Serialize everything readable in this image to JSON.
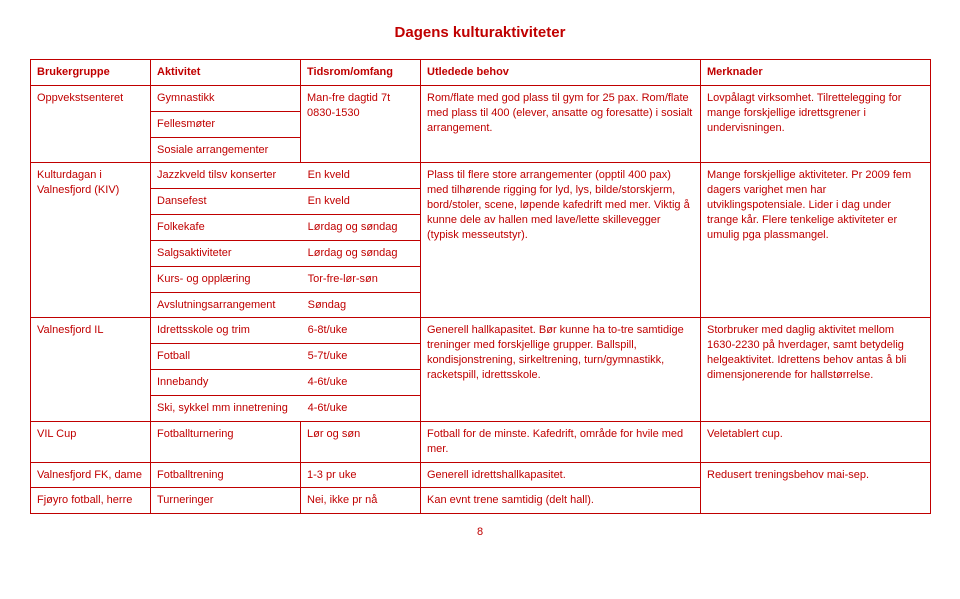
{
  "title": "Dagens kulturaktiviteter",
  "headers": {
    "c1": "Brukergruppe",
    "c2": "Aktivitet",
    "c3": "Tidsrom/omfang",
    "c4": "Utledede behov",
    "c5": "Merknader"
  },
  "row1": {
    "group": "Oppvekstsenteret",
    "act1": "Gymnastikk",
    "act2": "Fellesmøter",
    "act3": "Sosiale arrangementer",
    "time1": "Man-fre dagtid 7t",
    "time2": "0830-1530",
    "behov": "Rom/flate med god plass til gym for 25 pax. Rom/flate med plass til 400 (elever, ansatte og foresatte) i sosialt arrangement.",
    "merk": "Lovpålagt virksomhet. Tilrettelegging for mange forskjellige idrettsgrener i undervisningen."
  },
  "row2": {
    "group": "Kulturdagan i Valnesfjord (KIV)",
    "a1": "Jazzkveld tilsv konserter",
    "t1": "En kveld",
    "a2": "Dansefest",
    "t2": "En kveld",
    "a3": "Folkekafe",
    "t3": "Lørdag og søndag",
    "a4": "Salgsaktiviteter",
    "t4": "Lørdag og søndag",
    "a5": "Kurs- og opplæring",
    "t5": "Tor-fre-lør-søn",
    "a6": "Avslutningsarrangement",
    "t6": "Søndag",
    "behov": "Plass til flere store arrangementer (opptil 400 pax) med tilhørende rigging for lyd, lys, bilde/storskjerm, bord/stoler, scene, løpende kafedrift med mer. Viktig å kunne dele av hallen med lave/lette skillevegger (typisk messeutstyr).",
    "merk": "Mange forskjellige aktiviteter. Pr 2009 fem dagers varighet men har utviklingspotensiale. Lider i dag under trange kår. Flere tenkelige aktiviteter er umulig pga plassmangel."
  },
  "row3": {
    "group": "Valnesfjord IL",
    "a1": "Idrettsskole og trim",
    "t1": "6-8t/uke",
    "a2": "Fotball",
    "t2": "5-7t/uke",
    "a3": "Innebandy",
    "t3": "4-6t/uke",
    "a4": "Ski, sykkel mm innetrening",
    "t4": "4-6t/uke",
    "behov": "Generell hallkapasitet. Bør kunne ha to-tre samtidige treninger med forskjellige grupper. Ballspill, kondisjonstrening, sirkeltrening, turn/gymnastikk, racketspill, idrettsskole.",
    "merk": "Storbruker med daglig aktivitet mellom 1630-2230 på hverdager, samt betydelig helgeaktivitet. Idrettens behov antas å bli dimensjonerende for hallstørrelse."
  },
  "row4": {
    "group": "VIL Cup",
    "act": "Fotballturnering",
    "time": "Lør og søn",
    "behov": "Fotball for de minste. Kafedrift, område for hvile med mer.",
    "merk": "Veletablert cup."
  },
  "row5": {
    "group": "Valnesfjord FK, dame",
    "act": "Fotballtrening",
    "time": "1-3 pr uke",
    "behov": "Generell idrettshallkapasitet.",
    "merk": "Redusert treningsbehov mai-sep."
  },
  "row6": {
    "group": "Fjøyro fotball, herre",
    "act": "Turneringer",
    "time": "Nei, ikke pr nå",
    "behov": "Kan evnt trene samtidig (delt hall)."
  },
  "pagenum": "8"
}
